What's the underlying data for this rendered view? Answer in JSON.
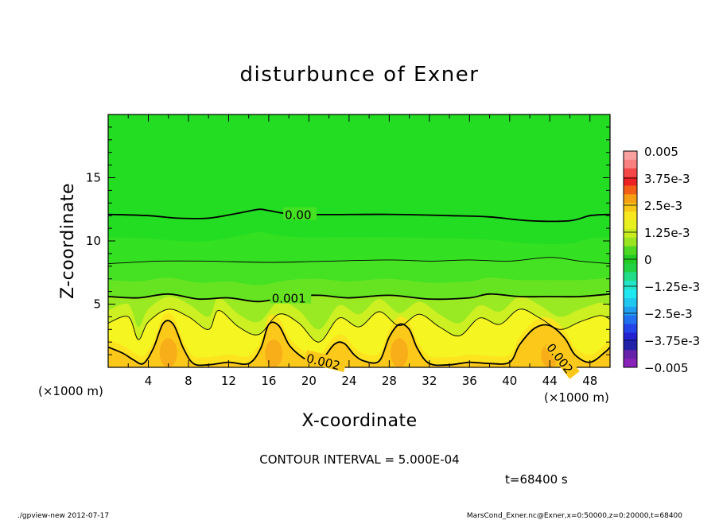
{
  "chart_data": {
    "type": "contour",
    "title": "disturbunce of Exner",
    "xlabel": "X-coordinate",
    "ylabel": "Z-coordinate",
    "x_unit": "(×1000 m)",
    "y_unit": "(×1000 m)",
    "xlim": [
      0,
      50
    ],
    "ylim": [
      0,
      20
    ],
    "x_ticks": [
      4,
      8,
      12,
      16,
      20,
      24,
      28,
      32,
      36,
      40,
      44,
      48
    ],
    "y_ticks": [
      5,
      10,
      15
    ],
    "contour_interval_text": "CONTOUR INTERVAL = 5.000E-04",
    "time_text": "t=68400 s",
    "contour_labels": [
      {
        "text": "0.00",
        "x": 17.6,
        "z": 12.1
      },
      {
        "text": "0.001",
        "x": 16.3,
        "z": 5.5
      },
      {
        "text": "0.002",
        "x": 19.8,
        "z": 0.8
      },
      {
        "text": "0.002",
        "x": 44.0,
        "z": 1.8
      }
    ],
    "contours": [
      {
        "level": 0.0,
        "points": [
          [
            0,
            12.1
          ],
          [
            4,
            12.0
          ],
          [
            7,
            11.8
          ],
          [
            10,
            11.8
          ],
          [
            13,
            12.2
          ],
          [
            15,
            12.5
          ],
          [
            16,
            12.4
          ],
          [
            19,
            12.1
          ],
          [
            28,
            12.1
          ],
          [
            34,
            12.0
          ],
          [
            38,
            11.9
          ],
          [
            42,
            11.6
          ],
          [
            46,
            11.6
          ],
          [
            48,
            12.0
          ],
          [
            50,
            12.1
          ]
        ]
      },
      {
        "level": 0.0005,
        "points": [
          [
            0,
            8.2
          ],
          [
            5,
            8.4
          ],
          [
            10,
            8.4
          ],
          [
            16,
            8.3
          ],
          [
            22,
            8.4
          ],
          [
            28,
            8.5
          ],
          [
            32,
            8.4
          ],
          [
            36,
            8.5
          ],
          [
            40,
            8.4
          ],
          [
            44,
            8.7
          ],
          [
            47,
            8.4
          ],
          [
            50,
            8.2
          ]
        ]
      },
      {
        "level": 0.001,
        "points": [
          [
            0,
            5.6
          ],
          [
            3,
            5.5
          ],
          [
            6,
            5.8
          ],
          [
            9,
            5.4
          ],
          [
            12,
            5.5
          ],
          [
            15,
            5.2
          ],
          [
            18,
            5.6
          ],
          [
            21,
            5.7
          ],
          [
            24,
            5.5
          ],
          [
            28,
            5.7
          ],
          [
            32,
            5.4
          ],
          [
            36,
            5.5
          ],
          [
            38,
            5.8
          ],
          [
            41,
            5.6
          ],
          [
            44,
            5.6
          ],
          [
            47,
            5.6
          ],
          [
            50,
            5.8
          ]
        ]
      },
      {
        "level": 0.0015,
        "points": [
          [
            0,
            3.5
          ],
          [
            2,
            4.0
          ],
          [
            3,
            2.2
          ],
          [
            4,
            3.6
          ],
          [
            6,
            4.6
          ],
          [
            8,
            4.0
          ],
          [
            10,
            3.0
          ],
          [
            11,
            4.5
          ],
          [
            13,
            3.2
          ],
          [
            15,
            2.6
          ],
          [
            17,
            4.2
          ],
          [
            19,
            3.5
          ],
          [
            21,
            2.0
          ],
          [
            23,
            3.9
          ],
          [
            25,
            3.2
          ],
          [
            27,
            4.4
          ],
          [
            29,
            3.3
          ],
          [
            31,
            4.2
          ],
          [
            33,
            3.2
          ],
          [
            35,
            2.5
          ],
          [
            37,
            3.9
          ],
          [
            39,
            3.4
          ],
          [
            41,
            4.6
          ],
          [
            43,
            3.9
          ],
          [
            45,
            3.0
          ],
          [
            47,
            3.6
          ],
          [
            49,
            4.1
          ],
          [
            50,
            3.8
          ]
        ]
      },
      {
        "level": 0.002,
        "points": [
          [
            0,
            1.6
          ],
          [
            1.5,
            1.1
          ],
          [
            2.5,
            0.6
          ],
          [
            3.5,
            0.3
          ],
          [
            4.5,
            1.5
          ],
          [
            5.5,
            3.5
          ],
          [
            6.5,
            3.4
          ],
          [
            7.5,
            1.5
          ],
          [
            8.5,
            0.3
          ],
          [
            10,
            0.2
          ],
          [
            12,
            0.4
          ],
          [
            14,
            0.3
          ],
          [
            15.2,
            1.5
          ],
          [
            16,
            3.4
          ],
          [
            17,
            3.3
          ],
          [
            18,
            1.8
          ],
          [
            19,
            1.0
          ],
          [
            20,
            0.5
          ],
          [
            21,
            0.3
          ],
          [
            22.5,
            1.8
          ],
          [
            23.5,
            1.9
          ],
          [
            24.5,
            1.0
          ],
          [
            25.5,
            0.5
          ],
          [
            27,
            0.5
          ],
          [
            28,
            2.4
          ],
          [
            29,
            3.4
          ],
          [
            30,
            3.0
          ],
          [
            30.8,
            1.5
          ],
          [
            32,
            0.3
          ],
          [
            34,
            0.2
          ],
          [
            36,
            0.4
          ],
          [
            38,
            0.3
          ],
          [
            40,
            0.4
          ],
          [
            41,
            1.8
          ],
          [
            42.5,
            3.1
          ],
          [
            44,
            3.3
          ],
          [
            45.5,
            2.3
          ],
          [
            46.5,
            1.0
          ],
          [
            48,
            0.4
          ],
          [
            49.5,
            1.2
          ],
          [
            50,
            1.6
          ]
        ]
      }
    ],
    "fill_bands": [
      {
        "level": 0.0,
        "color": "#22dd22"
      },
      {
        "level": 0.00025,
        "color": "#33e022"
      },
      {
        "level": 0.0005,
        "color": "#44e222"
      },
      {
        "level": 0.00075,
        "color": "#66e422"
      },
      {
        "level": 0.001,
        "color": "#99ea22"
      },
      {
        "level": 0.00125,
        "color": "#ccf022"
      },
      {
        "level": 0.0015,
        "color": "#f5f522"
      },
      {
        "level": 0.00175,
        "color": "#fde41e"
      },
      {
        "level": 0.002,
        "color": "#fcc81a"
      },
      {
        "level": 0.0025,
        "color": "#f8ae18"
      }
    ],
    "colorbar": {
      "labels": [
        "0.005",
        "3.75e-3",
        "2.5e-3",
        "1.25e-3",
        "0",
        "−1.25e-3",
        "−2.5e-3",
        "−3.75e-3",
        "−0.005"
      ],
      "colors": [
        "#f9a0a0",
        "#f98080",
        "#f44848",
        "#ee2222",
        "#f26018",
        "#f5a012",
        "#f8c818",
        "#f8e820",
        "#e8f020",
        "#c8ee20",
        "#9ae422",
        "#4ed822",
        "#22cc22",
        "#22d044",
        "#22dd88",
        "#22e4c8",
        "#20e8f0",
        "#20c8f0",
        "#209ef0",
        "#2070f0",
        "#2244e8",
        "#2222d0",
        "#2222a8",
        "#6622a8",
        "#8822b8"
      ],
      "high": 0.005,
      "low": -0.005
    }
  },
  "footer": {
    "left": "./gpview-new   2012-07-17",
    "right": "MarsCond_Exner.nc@Exner,x=0:50000,z=0:20000,t=68400"
  }
}
